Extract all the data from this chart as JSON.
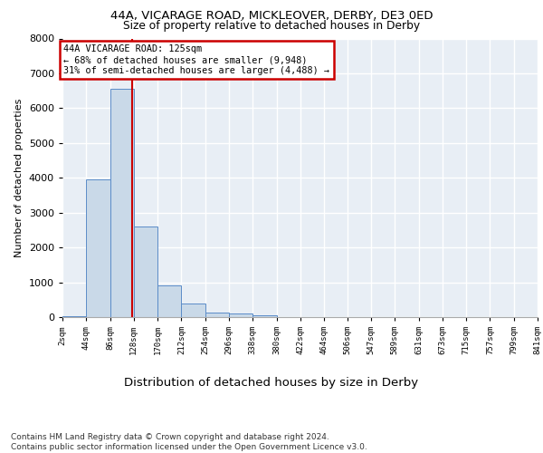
{
  "title1": "44A, VICARAGE ROAD, MICKLEOVER, DERBY, DE3 0ED",
  "title2": "Size of property relative to detached houses in Derby",
  "xlabel": "Distribution of detached houses by size in Derby",
  "ylabel": "Number of detached properties",
  "footnote": "Contains HM Land Registry data © Crown copyright and database right 2024.\nContains public sector information licensed under the Open Government Licence v3.0.",
  "bar_edges": [
    2,
    44,
    86,
    128,
    170,
    212,
    254,
    296,
    338,
    380,
    422,
    464,
    506,
    547,
    589,
    631,
    673,
    715,
    757,
    799,
    841
  ],
  "bar_heights": [
    30,
    3950,
    6550,
    2600,
    900,
    380,
    130,
    110,
    60,
    0,
    0,
    0,
    0,
    0,
    0,
    0,
    0,
    0,
    0,
    0
  ],
  "bar_color": "#c9d9e8",
  "bar_edgecolor": "#5b8cc8",
  "property_size": 125,
  "property_line_color": "#cc0000",
  "annotation_line1": "44A VICARAGE ROAD: 125sqm",
  "annotation_line2": "← 68% of detached houses are smaller (9,948)",
  "annotation_line3": "31% of semi-detached houses are larger (4,488) →",
  "annotation_box_edgecolor": "#cc0000",
  "ylim": [
    0,
    8000
  ],
  "yticks": [
    0,
    1000,
    2000,
    3000,
    4000,
    5000,
    6000,
    7000,
    8000
  ],
  "background_color": "#e8eef5",
  "grid_color": "#ffffff",
  "tick_labels": [
    "2sqm",
    "44sqm",
    "86sqm",
    "128sqm",
    "170sqm",
    "212sqm",
    "254sqm",
    "296sqm",
    "338sqm",
    "380sqm",
    "422sqm",
    "464sqm",
    "506sqm",
    "547sqm",
    "589sqm",
    "631sqm",
    "673sqm",
    "715sqm",
    "757sqm",
    "799sqm",
    "841sqm"
  ],
  "title1_fontsize": 9.5,
  "title2_fontsize": 8.8,
  "xlabel_fontsize": 9.5,
  "ylabel_fontsize": 8,
  "footnote_fontsize": 6.5
}
